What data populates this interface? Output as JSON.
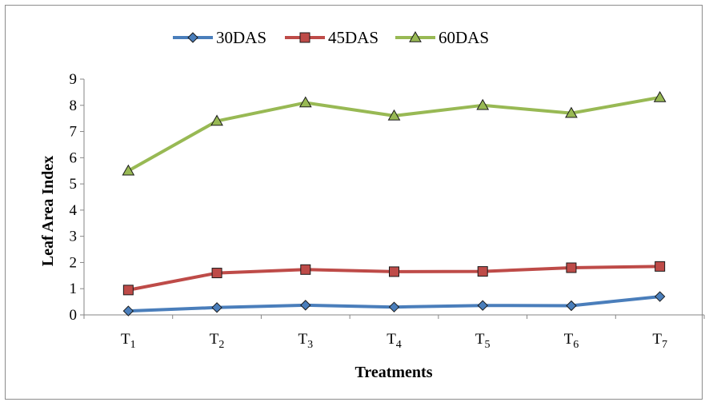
{
  "chart_data": {
    "type": "line",
    "title": "",
    "xlabel": "Treatments",
    "ylabel": "Leaf Area Index",
    "categories": [
      "T1",
      "T2",
      "T3",
      "T4",
      "T5",
      "T6",
      "T7"
    ],
    "category_labels": [
      {
        "base": "T",
        "sub": "1"
      },
      {
        "base": "T",
        "sub": "2"
      },
      {
        "base": "T",
        "sub": "3"
      },
      {
        "base": "T",
        "sub": "4"
      },
      {
        "base": "T",
        "sub": "5"
      },
      {
        "base": "T",
        "sub": "6"
      },
      {
        "base": "T",
        "sub": "7"
      }
    ],
    "ylim": [
      0,
      9
    ],
    "yticks": [
      0,
      1,
      2,
      3,
      4,
      5,
      6,
      7,
      8,
      9
    ],
    "grid": false,
    "legend_position": "top",
    "series": [
      {
        "name": "30DAS",
        "color": "#4a7ebb",
        "marker": "diamond",
        "values": [
          0.15,
          0.28,
          0.37,
          0.3,
          0.36,
          0.35,
          0.7
        ]
      },
      {
        "name": "45DAS",
        "color": "#be4b48",
        "marker": "square",
        "values": [
          0.95,
          1.6,
          1.73,
          1.65,
          1.66,
          1.8,
          1.85
        ]
      },
      {
        "name": "60DAS",
        "color": "#98b954",
        "marker": "triangle",
        "values": [
          5.5,
          7.4,
          8.1,
          7.6,
          8.0,
          7.7,
          8.3
        ]
      }
    ]
  }
}
